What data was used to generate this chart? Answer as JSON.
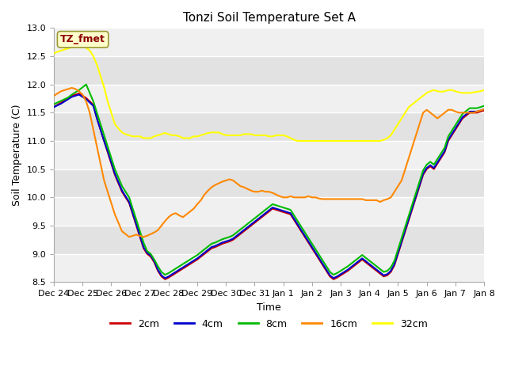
{
  "title": "Tonzi Soil Temperature Set A",
  "xlabel": "Time",
  "ylabel": "Soil Temperature (C)",
  "legend_label": "TZ_fmet",
  "ylim": [
    8.5,
    13.0
  ],
  "yticks": [
    8.5,
    9.0,
    9.5,
    10.0,
    10.5,
    11.0,
    11.5,
    12.0,
    12.5,
    13.0
  ],
  "xtick_labels": [
    "Dec 24",
    "Dec 25",
    "Dec 26",
    "Dec 27",
    "Dec 28",
    "Dec 29",
    "Dec 30",
    "Dec 31",
    "Jan 1",
    "Jan 2",
    "Jan 3",
    "Jan 4",
    "Jan 5",
    "Jan 6",
    "Jan 7",
    "Jan 8"
  ],
  "colors": {
    "2cm": "#cc0000",
    "4cm": "#0000cc",
    "8cm": "#00bb00",
    "16cm": "#ff8800",
    "32cm": "#ffff00"
  },
  "series_order": [
    "2cm",
    "4cm",
    "8cm",
    "16cm",
    "32cm"
  ],
  "stripe_colors": [
    "#f0f0f0",
    "#e2e2e2"
  ],
  "fig_bg": "#ffffff",
  "series": {
    "2cm": [
      11.6,
      11.64,
      11.68,
      11.72,
      11.76,
      11.8,
      11.82,
      11.84,
      11.8,
      11.76,
      11.7,
      11.64,
      11.4,
      11.2,
      11.0,
      10.8,
      10.6,
      10.4,
      10.25,
      10.1,
      10.0,
      9.9,
      9.7,
      9.5,
      9.3,
      9.1,
      9.0,
      8.95,
      8.85,
      8.7,
      8.6,
      8.55,
      8.58,
      8.62,
      8.66,
      8.7,
      8.74,
      8.78,
      8.82,
      8.86,
      8.9,
      8.95,
      9.0,
      9.05,
      9.1,
      9.12,
      9.15,
      9.18,
      9.2,
      9.22,
      9.25,
      9.3,
      9.35,
      9.4,
      9.45,
      9.5,
      9.55,
      9.6,
      9.65,
      9.7,
      9.75,
      9.8,
      9.78,
      9.76,
      9.74,
      9.72,
      9.7,
      9.6,
      9.5,
      9.4,
      9.3,
      9.2,
      9.1,
      9.0,
      8.9,
      8.8,
      8.7,
      8.6,
      8.55,
      8.58,
      8.62,
      8.66,
      8.7,
      8.75,
      8.8,
      8.85,
      8.9,
      8.85,
      8.8,
      8.75,
      8.7,
      8.65,
      8.6,
      8.62,
      8.68,
      8.8,
      9.0,
      9.2,
      9.4,
      9.6,
      9.8,
      10.0,
      10.2,
      10.4,
      10.5,
      10.55,
      10.5,
      10.6,
      10.7,
      10.8,
      11.0,
      11.1,
      11.2,
      11.3,
      11.4,
      11.45,
      11.5,
      11.5,
      11.5,
      11.52,
      11.54
    ],
    "4cm": [
      11.6,
      11.63,
      11.66,
      11.7,
      11.74,
      11.78,
      11.8,
      11.82,
      11.78,
      11.74,
      11.68,
      11.62,
      11.4,
      11.2,
      11.0,
      10.82,
      10.62,
      10.42,
      10.27,
      10.12,
      10.02,
      9.92,
      9.72,
      9.52,
      9.32,
      9.12,
      9.02,
      8.97,
      8.87,
      8.72,
      8.62,
      8.57,
      8.6,
      8.64,
      8.68,
      8.72,
      8.76,
      8.8,
      8.84,
      8.88,
      8.92,
      8.97,
      9.02,
      9.07,
      9.12,
      9.14,
      9.17,
      9.2,
      9.22,
      9.24,
      9.27,
      9.32,
      9.37,
      9.42,
      9.47,
      9.52,
      9.57,
      9.62,
      9.67,
      9.72,
      9.77,
      9.82,
      9.8,
      9.78,
      9.76,
      9.74,
      9.72,
      9.62,
      9.52,
      9.42,
      9.32,
      9.22,
      9.12,
      9.02,
      8.92,
      8.82,
      8.72,
      8.62,
      8.57,
      8.6,
      8.64,
      8.68,
      8.72,
      8.77,
      8.82,
      8.87,
      8.92,
      8.87,
      8.82,
      8.77,
      8.72,
      8.67,
      8.62,
      8.64,
      8.7,
      8.82,
      9.02,
      9.22,
      9.42,
      9.62,
      9.82,
      10.02,
      10.22,
      10.42,
      10.52,
      10.57,
      10.52,
      10.62,
      10.72,
      10.82,
      11.02,
      11.12,
      11.22,
      11.32,
      11.42,
      11.47,
      11.52,
      11.52,
      11.52,
      11.54,
      11.56
    ],
    "8cm": [
      11.65,
      11.68,
      11.71,
      11.74,
      11.77,
      11.82,
      11.86,
      11.9,
      11.95,
      12.0,
      11.85,
      11.7,
      11.5,
      11.3,
      11.1,
      10.9,
      10.7,
      10.5,
      10.35,
      10.2,
      10.1,
      10.0,
      9.8,
      9.6,
      9.4,
      9.2,
      9.05,
      9.0,
      8.9,
      8.78,
      8.68,
      8.63,
      8.66,
      8.7,
      8.74,
      8.78,
      8.82,
      8.86,
      8.9,
      8.94,
      8.98,
      9.03,
      9.08,
      9.13,
      9.18,
      9.2,
      9.23,
      9.26,
      9.28,
      9.3,
      9.33,
      9.38,
      9.43,
      9.48,
      9.53,
      9.58,
      9.63,
      9.68,
      9.73,
      9.78,
      9.83,
      9.88,
      9.86,
      9.84,
      9.82,
      9.8,
      9.78,
      9.68,
      9.58,
      9.48,
      9.38,
      9.28,
      9.18,
      9.08,
      8.98,
      8.88,
      8.78,
      8.68,
      8.63,
      8.66,
      8.7,
      8.74,
      8.78,
      8.83,
      8.88,
      8.93,
      8.98,
      8.93,
      8.88,
      8.83,
      8.78,
      8.73,
      8.68,
      8.7,
      8.76,
      8.88,
      9.08,
      9.28,
      9.48,
      9.68,
      9.88,
      10.08,
      10.28,
      10.48,
      10.58,
      10.63,
      10.58,
      10.68,
      10.78,
      10.88,
      11.08,
      11.18,
      11.28,
      11.38,
      11.48,
      11.53,
      11.58,
      11.58,
      11.58,
      11.6,
      11.62
    ],
    "16cm": [
      11.8,
      11.84,
      11.88,
      11.9,
      11.92,
      11.94,
      11.92,
      11.88,
      11.82,
      11.7,
      11.5,
      11.2,
      10.9,
      10.6,
      10.3,
      10.1,
      9.9,
      9.7,
      9.55,
      9.4,
      9.35,
      9.3,
      9.32,
      9.34,
      9.32,
      9.3,
      9.32,
      9.35,
      9.38,
      9.42,
      9.5,
      9.58,
      9.65,
      9.7,
      9.72,
      9.68,
      9.65,
      9.7,
      9.75,
      9.8,
      9.88,
      9.95,
      10.05,
      10.12,
      10.18,
      10.22,
      10.25,
      10.28,
      10.3,
      10.32,
      10.3,
      10.25,
      10.2,
      10.18,
      10.15,
      10.12,
      10.1,
      10.1,
      10.12,
      10.1,
      10.1,
      10.08,
      10.05,
      10.02,
      10.0,
      10.0,
      10.02,
      10.0,
      10.0,
      10.0,
      10.0,
      10.02,
      10.0,
      10.0,
      9.98,
      9.97,
      9.97,
      9.97,
      9.97,
      9.97,
      9.97,
      9.97,
      9.97,
      9.97,
      9.97,
      9.97,
      9.97,
      9.95,
      9.95,
      9.95,
      9.95,
      9.92,
      9.95,
      9.97,
      10.0,
      10.1,
      10.2,
      10.3,
      10.5,
      10.7,
      10.9,
      11.1,
      11.3,
      11.5,
      11.55,
      11.5,
      11.45,
      11.4,
      11.45,
      11.5,
      11.55,
      11.55,
      11.52,
      11.5,
      11.5,
      11.5,
      11.5,
      11.5,
      11.52,
      11.54,
      11.56
    ],
    "32cm": [
      12.55,
      12.58,
      12.6,
      12.62,
      12.64,
      12.66,
      12.67,
      12.68,
      12.67,
      12.65,
      12.6,
      12.5,
      12.35,
      12.15,
      11.95,
      11.7,
      11.5,
      11.3,
      11.22,
      11.15,
      11.12,
      11.1,
      11.08,
      11.08,
      11.08,
      11.05,
      11.05,
      11.05,
      11.08,
      11.1,
      11.12,
      11.14,
      11.12,
      11.1,
      11.1,
      11.08,
      11.05,
      11.05,
      11.05,
      11.08,
      11.08,
      11.1,
      11.12,
      11.14,
      11.15,
      11.15,
      11.15,
      11.12,
      11.1,
      11.1,
      11.1,
      11.1,
      11.1,
      11.12,
      11.12,
      11.12,
      11.1,
      11.1,
      11.1,
      11.1,
      11.08,
      11.08,
      11.1,
      11.1,
      11.1,
      11.08,
      11.05,
      11.02,
      11.0,
      11.0,
      11.0,
      11.0,
      11.0,
      11.0,
      11.0,
      11.0,
      11.0,
      11.0,
      11.0,
      11.0,
      11.0,
      11.0,
      11.0,
      11.0,
      11.0,
      11.0,
      11.0,
      11.0,
      11.0,
      11.0,
      11.0,
      11.0,
      11.02,
      11.05,
      11.1,
      11.2,
      11.3,
      11.4,
      11.5,
      11.6,
      11.65,
      11.7,
      11.75,
      11.8,
      11.85,
      11.88,
      11.9,
      11.88,
      11.87,
      11.88,
      11.9,
      11.9,
      11.88,
      11.86,
      11.85,
      11.85,
      11.85,
      11.86,
      11.87,
      11.88,
      11.9
    ]
  }
}
